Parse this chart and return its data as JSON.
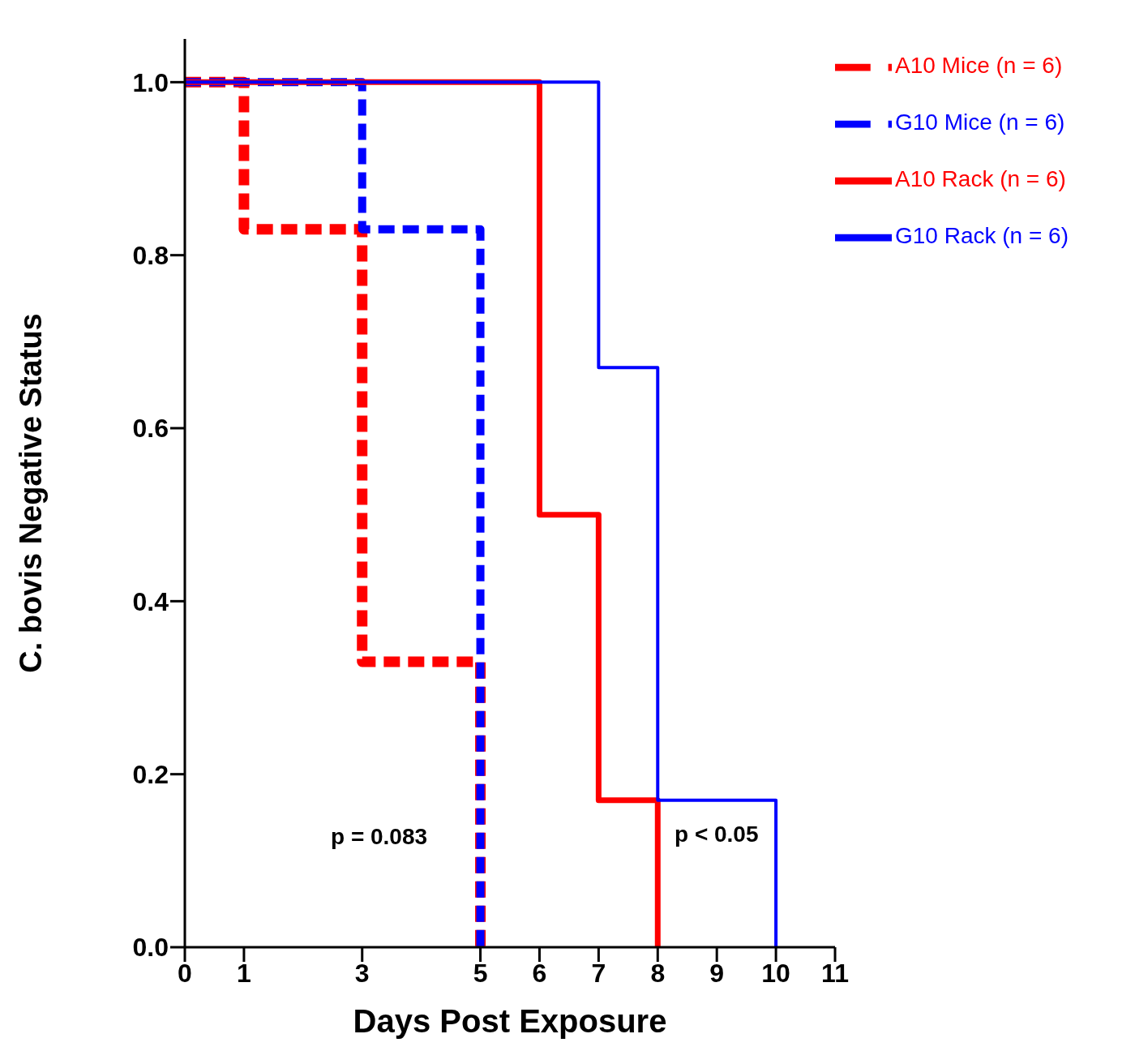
{
  "chart_data": {
    "type": "step",
    "xlabel": "Days Post Exposure",
    "ylabel": "C. bovis Negative Status",
    "xlim": [
      0,
      11
    ],
    "xticks": [
      0,
      1,
      3,
      5,
      6,
      7,
      8,
      9,
      10,
      11
    ],
    "ylim": [
      0,
      1.05
    ],
    "yticks": [
      {
        "value": 0,
        "label": "0.0"
      },
      {
        "value": 0.2,
        "label": "0.2"
      },
      {
        "value": 0.4,
        "label": "0.4"
      },
      {
        "value": 0.6,
        "label": "0.6"
      },
      {
        "value": 0.8,
        "label": "0.8"
      },
      {
        "value": 1,
        "label": "1.0"
      }
    ],
    "series": [
      {
        "name": "A10 Mice (n = 6)",
        "color": "#ff0000",
        "line_style": "dashed",
        "x": [
          0,
          1,
          3,
          5
        ],
        "values": [
          1,
          0.83,
          0.33,
          0
        ]
      },
      {
        "name": "G10 Mice (n = 6)",
        "color": "#0000ff",
        "line_style": "dashed",
        "x": [
          0,
          3,
          5
        ],
        "values": [
          1,
          0.83,
          0
        ]
      },
      {
        "name": "A10 Rack (n = 6)",
        "color": "#ff0000",
        "line_style": "solid",
        "x": [
          0,
          6,
          7,
          8
        ],
        "values": [
          1,
          0.5,
          0.17,
          0
        ]
      },
      {
        "name": "G10 Rack (n = 6)",
        "color": "#0000ff",
        "line_style": "solid",
        "x": [
          0,
          7,
          8,
          10
        ],
        "values": [
          1,
          0.67,
          0.17,
          0
        ]
      }
    ],
    "annotations": [
      "p = 0.083",
      "p < 0.05"
    ],
    "legend": "top right"
  }
}
